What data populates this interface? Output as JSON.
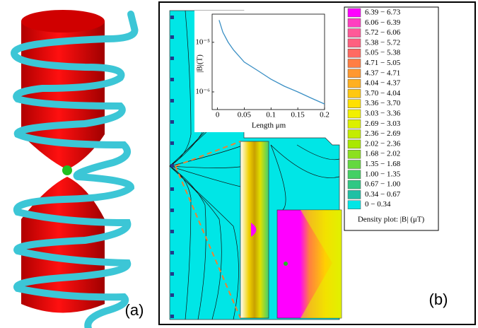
{
  "panel_a": {
    "label": "(a)"
  },
  "panel_b": {
    "label": "(b)"
  },
  "legend": {
    "title": "Density plot: |B| (μT)",
    "entries": [
      {
        "label": "6.39 − 6.73",
        "color": "#ff00ff"
      },
      {
        "label": "6.06 − 6.39",
        "color": "#ff40c0"
      },
      {
        "label": "5.72 − 6.06",
        "color": "#ff5a98"
      },
      {
        "label": "5.38 − 5.72",
        "color": "#ff6080"
      },
      {
        "label": "5.05 − 5.38",
        "color": "#ff6a62"
      },
      {
        "label": "4.71 − 5.05",
        "color": "#ff7e44"
      },
      {
        "label": "4.37 − 4.71",
        "color": "#ff9830"
      },
      {
        "label": "4.04 − 4.37",
        "color": "#ffb020"
      },
      {
        "label": "3.70 − 4.04",
        "color": "#ffc812"
      },
      {
        "label": "3.36 − 3.70",
        "color": "#ffe000"
      },
      {
        "label": "3.03 − 3.36",
        "color": "#f2f000"
      },
      {
        "label": "2.69 − 3.03",
        "color": "#dcf000"
      },
      {
        "label": "2.36 − 2.69",
        "color": "#c4ec00"
      },
      {
        "label": "2.02 − 2.36",
        "color": "#aae800"
      },
      {
        "label": "1.68 − 2.02",
        "color": "#8ce020"
      },
      {
        "label": "1.35 − 1.68",
        "color": "#64d840"
      },
      {
        "label": "1.00 − 1.35",
        "color": "#44d064"
      },
      {
        "label": "0.67 − 1.00",
        "color": "#30c884"
      },
      {
        "label": "0.34 − 0.67",
        "color": "#20c0a4"
      },
      {
        "label": "0 − 0.34",
        "color": "#00e6e6"
      }
    ]
  },
  "chart_data": {
    "type": "line",
    "xlabel": "Length μm",
    "ylabel": "|B|(T)",
    "log_y": true,
    "color": "#3a8fc4",
    "x": [
      0.003,
      0.01,
      0.02,
      0.03,
      0.05,
      0.075,
      0.1,
      0.125,
      0.15,
      0.175,
      0.2
    ],
    "values": [
      2.8e-05,
      1.6e-05,
      1e-05,
      7e-06,
      4e-06,
      2.7e-06,
      1.8e-06,
      1.3e-06,
      1e-06,
      7.5e-07,
      5.7e-07
    ],
    "xlim": [
      -0.01,
      0.2
    ],
    "ylim": [
      4.4e-07,
      3.7e-05
    ],
    "xticks": [
      0,
      0.05,
      0.1,
      0.15,
      0.2
    ],
    "yticks": [
      {
        "value": 1e-05,
        "label": "10⁻⁵"
      },
      {
        "value": 1e-06,
        "label": "10⁻⁶"
      }
    ]
  }
}
